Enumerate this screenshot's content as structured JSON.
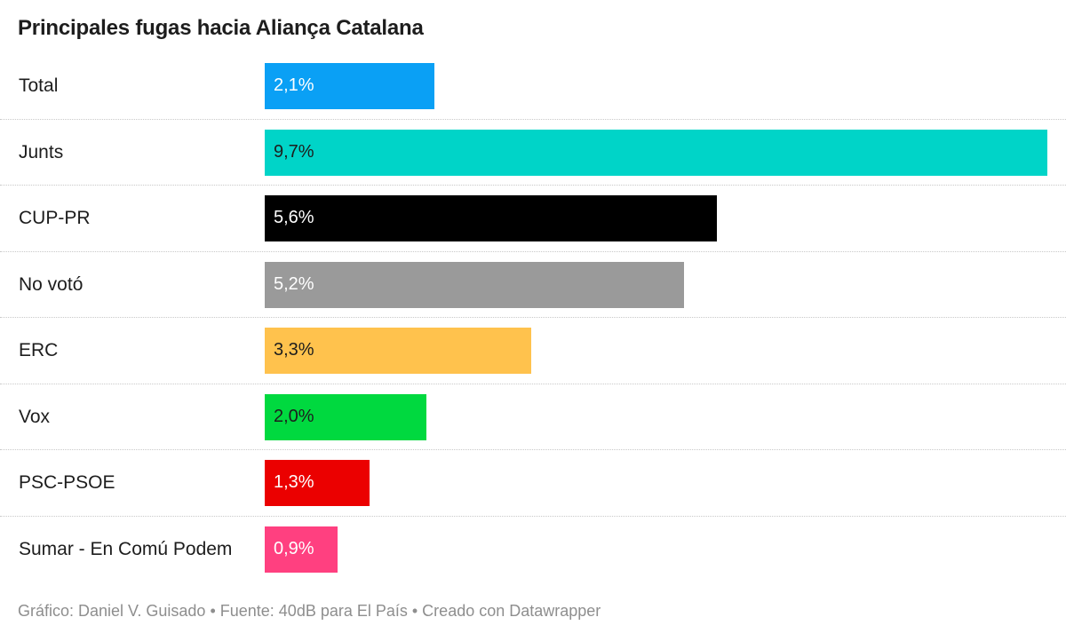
{
  "title": "Principales fugas hacia Aliança Catalana",
  "footer": "Gráfico: Daniel V. Guisado • Fuente: 40dB para El País • Creado con Datawrapper",
  "chart_data": {
    "type": "bar",
    "orientation": "horizontal",
    "title": "Principales fugas hacia Aliança Catalana",
    "categories": [
      "Total",
      "Junts",
      "CUP-PR",
      "No votó",
      "ERC",
      "Vox",
      "PSC-PSOE",
      "Sumar - En Comú Podem"
    ],
    "values": [
      2.1,
      9.7,
      5.6,
      5.2,
      3.3,
      2.0,
      1.3,
      0.9
    ],
    "value_labels": [
      "2,1%",
      "9,7%",
      "5,6%",
      "5,2%",
      "3,3%",
      "2,0%",
      "1,3%",
      "0,9%"
    ],
    "colors": [
      "#0aa0f5",
      "#00d4c8",
      "#000000",
      "#9a9a9a",
      "#ffc24d",
      "#00d93f",
      "#eb0000",
      "#ff4080"
    ],
    "label_colors": [
      "#ffffff",
      "#1d1d1d",
      "#ffffff",
      "#ffffff",
      "#1d1d1d",
      "#1d1d1d",
      "#ffffff",
      "#ffffff"
    ],
    "xlim": [
      0,
      9.7
    ],
    "grid": false,
    "legend": "none"
  }
}
